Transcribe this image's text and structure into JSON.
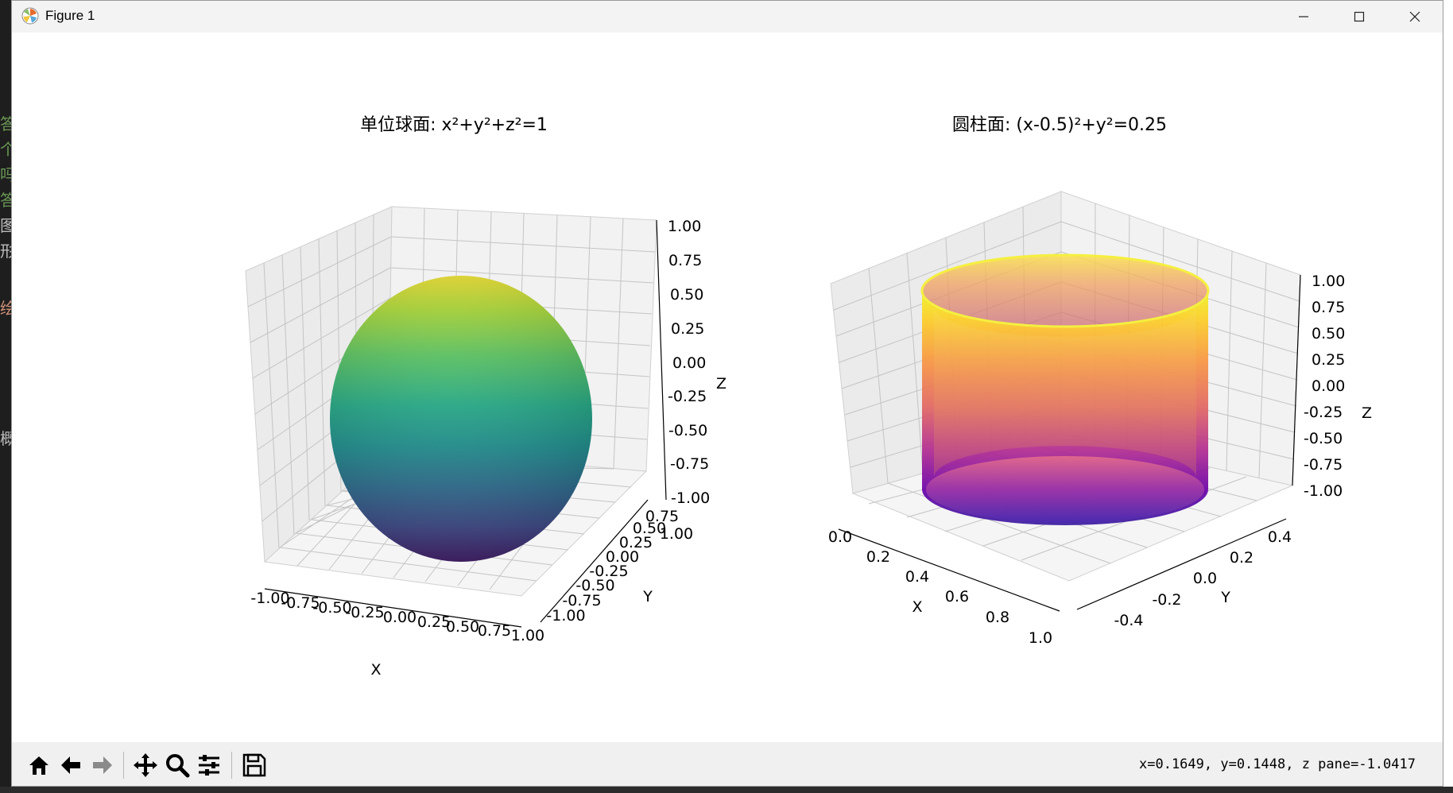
{
  "window": {
    "title": "Figure 1"
  },
  "figure": {
    "subplot_1": {
      "title": "单位球面: x²+y²+z²=1",
      "xlabel": "X",
      "ylabel": "Y",
      "zlabel": "Z",
      "xticks": [
        "-1.00",
        "-0.75",
        "-0.50",
        "-0.25",
        "0.00",
        "0.25",
        "0.50",
        "0.75",
        "1.00"
      ],
      "yticks": [
        "-1.00",
        "-0.75",
        "-0.50",
        "-0.25",
        "0.00",
        "0.25",
        "0.50",
        "0.75",
        "1.00"
      ],
      "zticks": [
        "1.00",
        "0.75",
        "0.50",
        "0.25",
        "0.00",
        "-0.25",
        "-0.50",
        "-0.75",
        "-1.00"
      ],
      "colormap": "viridis"
    },
    "subplot_2": {
      "title": "圆柱面: (x-0.5)²+y²=0.25",
      "xlabel": "X",
      "ylabel": "Y",
      "zlabel": "Z",
      "xticks": [
        "0.0",
        "0.2",
        "0.4",
        "0.6",
        "0.8",
        "1.0"
      ],
      "yticks": [
        "0.4",
        "0.2",
        "0.0",
        "-0.2",
        "-0.4"
      ],
      "zticks": [
        "1.00",
        "0.75",
        "0.50",
        "0.25",
        "0.00",
        "-0.25",
        "-0.50",
        "-0.75",
        "-1.00"
      ],
      "colormap": "plasma"
    }
  },
  "chart_data": [
    {
      "type": "surface",
      "title": "单位球面: x²+y²+z²=1",
      "equation": "x²+y²+z²=1",
      "xlabel": "X",
      "ylabel": "Y",
      "zlabel": "Z",
      "xlim": [
        -1,
        1
      ],
      "ylim": [
        -1,
        1
      ],
      "zlim": [
        -1,
        1
      ],
      "colormap": "viridis",
      "grid": true
    },
    {
      "type": "surface",
      "title": "圆柱面: (x-0.5)²+y²=0.25",
      "equation": "(x-0.5)²+y²=0.25",
      "xlabel": "X",
      "ylabel": "Y",
      "zlabel": "Z",
      "xlim": [
        0,
        1
      ],
      "ylim": [
        -0.5,
        0.5
      ],
      "zlim": [
        -1,
        1
      ],
      "colormap": "plasma",
      "grid": true
    }
  ],
  "toolbar": {
    "home_icon": "home-icon",
    "back_icon": "arrow-left-icon",
    "forward_icon": "arrow-right-icon",
    "pan_icon": "move-icon",
    "zoom_icon": "magnifier-icon",
    "configure_icon": "sliders-icon",
    "save_icon": "floppy-disk-icon",
    "status": "x=0.1649, y=0.1448, z pane=-1.0417"
  }
}
